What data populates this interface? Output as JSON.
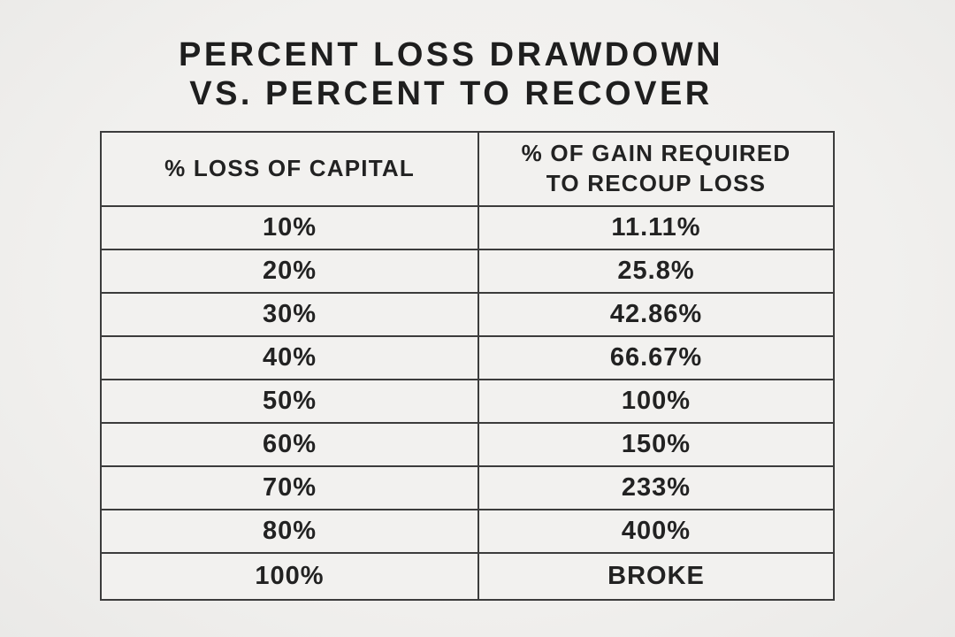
{
  "header": {
    "title_line1": "PERCENT LOSS DRAWDOWN",
    "title_line2": "VS. PERCENT TO RECOVER"
  },
  "chart_data": {
    "type": "table",
    "title": "PERCENT LOSS DRAWDOWN VS. PERCENT TO RECOVER",
    "columns": [
      "% LOSS OF CAPITAL",
      "% OF GAIN REQUIRED TO RECOUP LOSS"
    ],
    "rows": [
      [
        "10%",
        "11.11%"
      ],
      [
        "20%",
        "25.8%"
      ],
      [
        "30%",
        "42.86%"
      ],
      [
        "40%",
        "66.67%"
      ],
      [
        "50%",
        "100%"
      ],
      [
        "60%",
        "150%"
      ],
      [
        "70%",
        "233%"
      ],
      [
        "80%",
        "400%"
      ],
      [
        "100%",
        "BROKE"
      ]
    ]
  },
  "colors": {
    "background": "#f1f0ee",
    "table_fill": "#f2f1ef",
    "border": "#3c3c3c",
    "text": "#1f1f1f"
  }
}
